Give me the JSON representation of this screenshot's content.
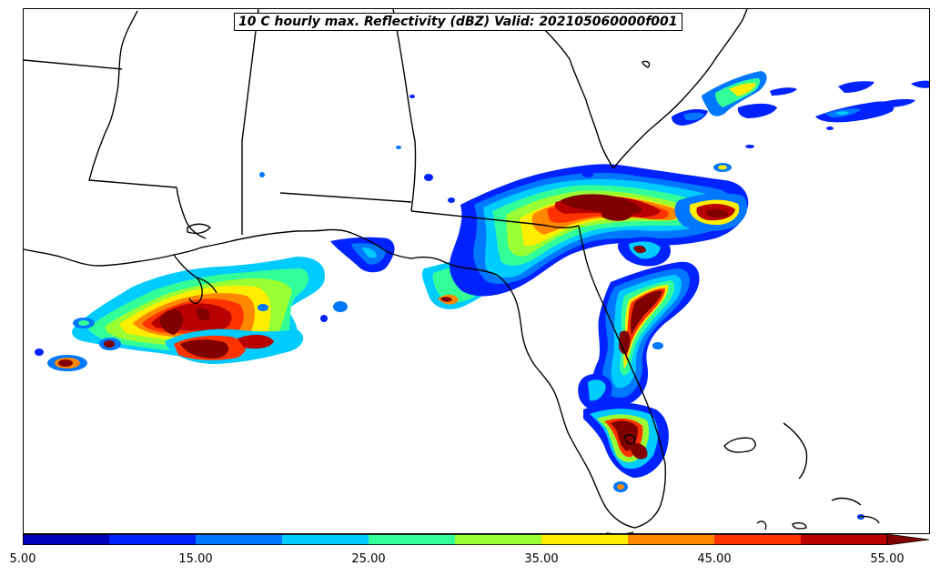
{
  "title": "10 C hourly max. Reflectivity (dBZ) Valid: 202105060000f001",
  "colorbar": {
    "bins": [
      {
        "from": 5,
        "to": 10,
        "color": "#0000b8"
      },
      {
        "from": 10,
        "to": 15,
        "color": "#0022ff"
      },
      {
        "from": 15,
        "to": 20,
        "color": "#0077ff"
      },
      {
        "from": 20,
        "to": 25,
        "color": "#00ccff"
      },
      {
        "from": 25,
        "to": 30,
        "color": "#33ff99"
      },
      {
        "from": 30,
        "to": 35,
        "color": "#99ff33"
      },
      {
        "from": 35,
        "to": 40,
        "color": "#ffee00"
      },
      {
        "from": 40,
        "to": 45,
        "color": "#ff8800"
      },
      {
        "from": 45,
        "to": 50,
        "color": "#ff3300"
      },
      {
        "from": 50,
        "to": 55,
        "color": "#b80000"
      }
    ],
    "extend_color": "#800000",
    "tick_labels": [
      "5.00",
      "15.00",
      "25.00",
      "35.00",
      "45.00",
      "55.00"
    ]
  },
  "style": {
    "dbz_colors": {
      "d5": "#0000b8",
      "d10": "#0022ff",
      "d15": "#0077ff",
      "d20": "#00ccff",
      "d25": "#33ff99",
      "d30": "#99ff33",
      "d35": "#ffee00",
      "d40": "#ff8800",
      "d45": "#ff3300",
      "d50": "#b80000",
      "d55": "#800000"
    }
  }
}
